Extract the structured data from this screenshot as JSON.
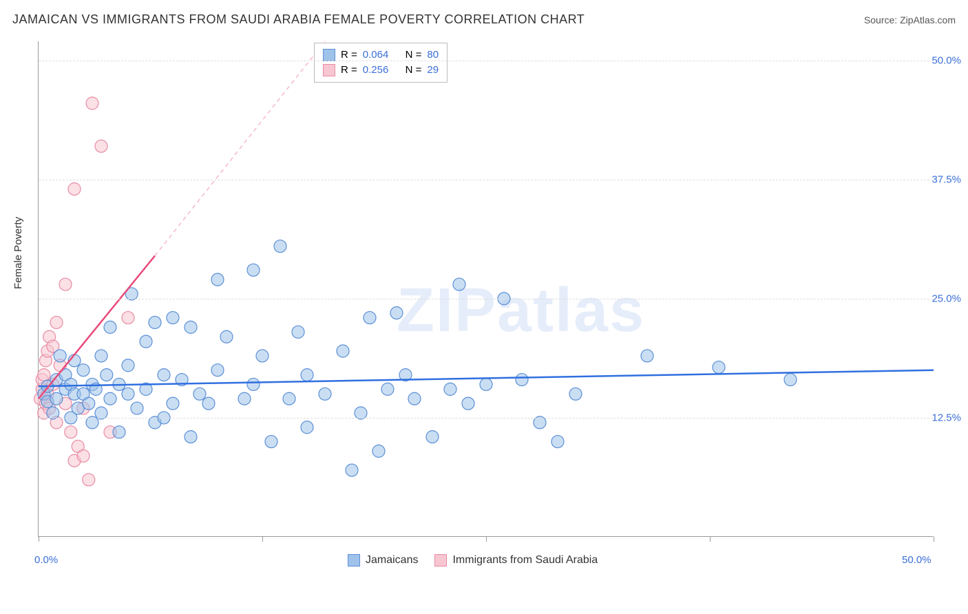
{
  "header": {
    "title": "JAMAICAN VS IMMIGRANTS FROM SAUDI ARABIA FEMALE POVERTY CORRELATION CHART",
    "source_label": "Source:",
    "source_name": "ZipAtlas.com"
  },
  "axis": {
    "ylabel": "Female Poverty",
    "xlim": [
      0,
      50
    ],
    "ylim": [
      0,
      52
    ],
    "xticks": [
      0,
      12.5,
      25,
      37.5,
      50
    ],
    "xtick_labels": [
      "0.0%",
      "",
      "",
      "",
      "50.0%"
    ],
    "yticks": [
      12.5,
      25,
      37.5,
      50
    ],
    "ytick_labels": [
      "12.5%",
      "25.0%",
      "37.5%",
      "50.0%"
    ],
    "grid_color": "#dddddd",
    "axis_color": "#999999"
  },
  "series": {
    "blue": {
      "label": "Jamaicans",
      "fill": "#9fc2ea",
      "stroke": "#5a8fd6",
      "marker_radius": 9,
      "R": "0.064",
      "N": "80",
      "trend": {
        "x1": 0,
        "y1": 15.8,
        "x2": 50,
        "y2": 17.5,
        "color": "#2f6fe0",
        "width": 2.5
      },
      "points": [
        [
          0.3,
          15.0
        ],
        [
          0.5,
          14.2
        ],
        [
          0.5,
          15.8
        ],
        [
          0.8,
          13.0
        ],
        [
          1.0,
          16.5
        ],
        [
          1.0,
          14.5
        ],
        [
          1.2,
          19.0
        ],
        [
          1.5,
          15.5
        ],
        [
          1.5,
          17.0
        ],
        [
          1.8,
          12.5
        ],
        [
          1.8,
          16.0
        ],
        [
          2.0,
          15.0
        ],
        [
          2.0,
          18.5
        ],
        [
          2.2,
          13.5
        ],
        [
          2.5,
          15.0
        ],
        [
          2.5,
          17.5
        ],
        [
          2.8,
          14.0
        ],
        [
          3.0,
          16.0
        ],
        [
          3.0,
          12.0
        ],
        [
          3.2,
          15.5
        ],
        [
          3.5,
          19.0
        ],
        [
          3.5,
          13.0
        ],
        [
          3.8,
          17.0
        ],
        [
          4.0,
          14.5
        ],
        [
          4.0,
          22.0
        ],
        [
          4.5,
          16.0
        ],
        [
          4.5,
          11.0
        ],
        [
          5.0,
          18.0
        ],
        [
          5.0,
          15.0
        ],
        [
          5.2,
          25.5
        ],
        [
          5.5,
          13.5
        ],
        [
          6.0,
          20.5
        ],
        [
          6.0,
          15.5
        ],
        [
          6.5,
          22.5
        ],
        [
          6.5,
          12.0
        ],
        [
          7.0,
          17.0
        ],
        [
          7.5,
          23.0
        ],
        [
          7.5,
          14.0
        ],
        [
          8.0,
          16.5
        ],
        [
          8.5,
          22.0
        ],
        [
          8.5,
          10.5
        ],
        [
          9.0,
          15.0
        ],
        [
          9.5,
          14.0
        ],
        [
          10.0,
          17.5
        ],
        [
          10.0,
          27.0
        ],
        [
          10.5,
          21.0
        ],
        [
          11.5,
          14.5
        ],
        [
          12.0,
          16.0
        ],
        [
          12.5,
          19.0
        ],
        [
          13.0,
          10.0
        ],
        [
          13.5,
          30.5
        ],
        [
          14.0,
          14.5
        ],
        [
          14.5,
          21.5
        ],
        [
          15.0,
          11.5
        ],
        [
          15.0,
          17.0
        ],
        [
          16.0,
          15.0
        ],
        [
          17.0,
          19.5
        ],
        [
          17.5,
          7.0
        ],
        [
          18.0,
          13.0
        ],
        [
          18.5,
          23.0
        ],
        [
          19.0,
          9.0
        ],
        [
          19.5,
          15.5
        ],
        [
          20.0,
          23.5
        ],
        [
          20.5,
          17.0
        ],
        [
          21.0,
          14.5
        ],
        [
          22.0,
          10.5
        ],
        [
          23.0,
          15.5
        ],
        [
          23.5,
          26.5
        ],
        [
          24.0,
          14.0
        ],
        [
          25.0,
          16.0
        ],
        [
          26.0,
          25.0
        ],
        [
          27.0,
          16.5
        ],
        [
          28.0,
          12.0
        ],
        [
          30.0,
          15.0
        ],
        [
          34.0,
          19.0
        ],
        [
          38.0,
          17.8
        ],
        [
          42.0,
          16.5
        ],
        [
          29.0,
          10.0
        ],
        [
          7.0,
          12.5
        ],
        [
          12.0,
          28.0
        ]
      ]
    },
    "pink": {
      "label": "Immigrants from Saudi Arabia",
      "fill": "#f7c6d1",
      "stroke": "#e88aa3",
      "marker_radius": 9,
      "R": "0.256",
      "N": "29",
      "trend_solid": {
        "x1": 0,
        "y1": 14.5,
        "x2": 6.5,
        "y2": 29.5,
        "color": "#e84a7a",
        "width": 2.5
      },
      "trend_dash": {
        "x1": 6.5,
        "y1": 29.5,
        "x2": 16,
        "y2": 52,
        "color": "#f5b8c8",
        "width": 1.5,
        "dash": "6,5"
      },
      "points": [
        [
          0.1,
          14.5
        ],
        [
          0.2,
          15.5
        ],
        [
          0.2,
          16.5
        ],
        [
          0.3,
          13.0
        ],
        [
          0.3,
          17.0
        ],
        [
          0.4,
          14.0
        ],
        [
          0.4,
          18.5
        ],
        [
          0.5,
          15.0
        ],
        [
          0.5,
          19.5
        ],
        [
          0.6,
          21.0
        ],
        [
          0.6,
          13.5
        ],
        [
          0.8,
          16.0
        ],
        [
          0.8,
          20.0
        ],
        [
          1.0,
          22.5
        ],
        [
          1.0,
          12.0
        ],
        [
          1.2,
          18.0
        ],
        [
          1.5,
          14.0
        ],
        [
          1.5,
          26.5
        ],
        [
          1.8,
          11.0
        ],
        [
          2.0,
          8.0
        ],
        [
          2.0,
          36.5
        ],
        [
          2.2,
          9.5
        ],
        [
          2.5,
          13.5
        ],
        [
          2.5,
          8.5
        ],
        [
          2.8,
          6.0
        ],
        [
          3.0,
          45.5
        ],
        [
          3.5,
          41.0
        ],
        [
          4.0,
          11.0
        ],
        [
          5.0,
          23.0
        ]
      ]
    }
  },
  "legend_top": {
    "rows": [
      {
        "swatch_fill": "#9fc2ea",
        "swatch_stroke": "#5a8fd6",
        "R_label": "R =",
        "R_val": "0.064",
        "N_label": "N =",
        "N_val": "80"
      },
      {
        "swatch_fill": "#f7c6d1",
        "swatch_stroke": "#e88aa3",
        "R_label": "R =",
        "R_val": "0.256",
        "N_label": "N =",
        "N_val": "29"
      }
    ]
  },
  "watermark": "ZIPatlas",
  "colors": {
    "text": "#333333",
    "blue_text": "#3b6fd8",
    "bg": "#ffffff"
  }
}
